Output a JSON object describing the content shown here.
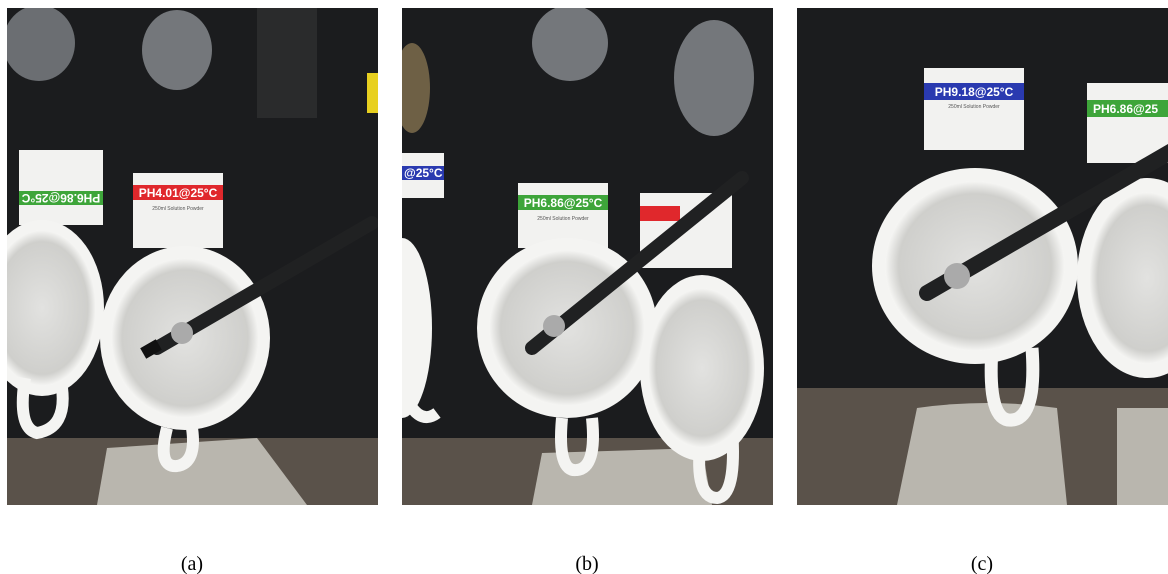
{
  "panels": [
    {
      "caption": "(a)",
      "labels": [
        "PH6.86@25°C",
        "PH4.01@25°C",
        "250ml Solution Powder"
      ]
    },
    {
      "caption": "(b)",
      "labels": [
        "PH6.86@25°C",
        "250ml Solution Powder",
        "@25°C"
      ]
    },
    {
      "caption": "(c)",
      "labels": [
        "PH9.18@25°C",
        "PH6.86@25",
        "250ml Solution Powder"
      ]
    }
  ]
}
